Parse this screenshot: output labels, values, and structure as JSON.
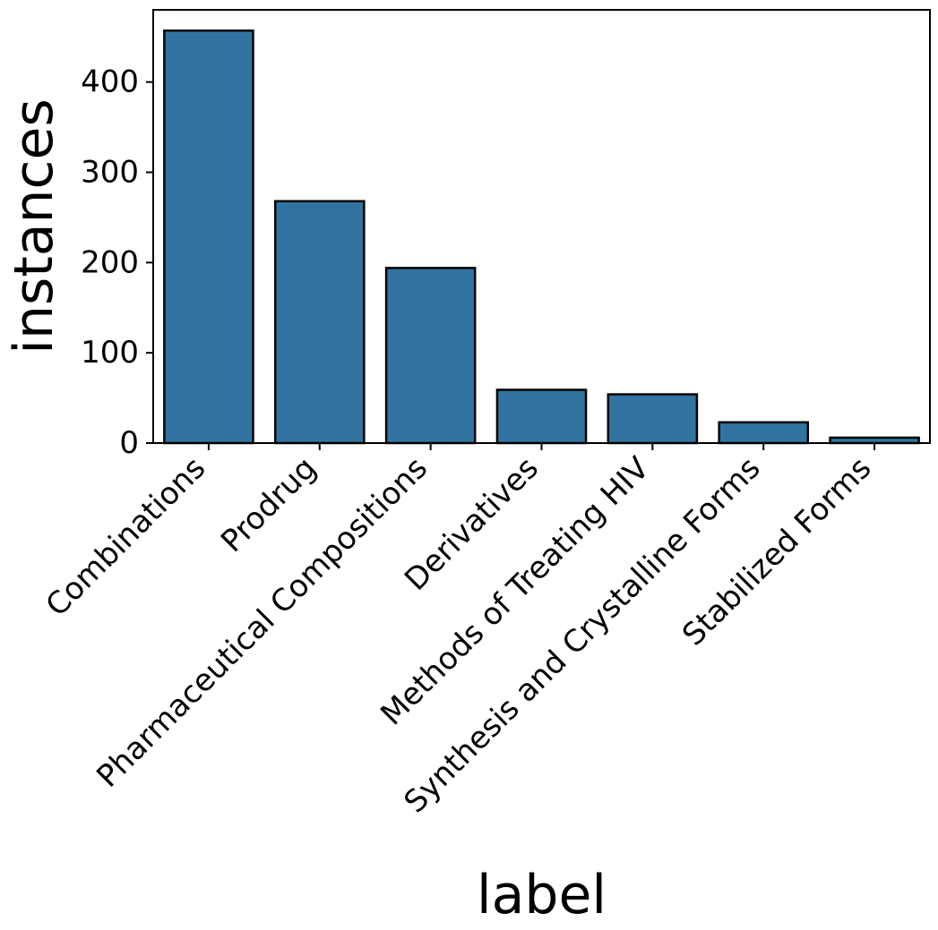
{
  "chart_data": {
    "type": "bar",
    "title": "",
    "xlabel": "label",
    "ylabel": "instances",
    "categories": [
      "Combinations",
      "Prodrug",
      "Pharmaceutical Compositions",
      "Derivatives",
      "Methods of Treating HIV",
      "Synthesis and Crystalline Forms",
      "Stabilized Forms"
    ],
    "values": [
      457,
      268,
      194,
      59,
      54,
      23,
      6
    ],
    "ylim": [
      0,
      480
    ],
    "yticks": [
      0,
      100,
      200,
      300,
      400
    ],
    "grid": false,
    "bar_color": "#3274a1",
    "edge_color": "#000000"
  }
}
